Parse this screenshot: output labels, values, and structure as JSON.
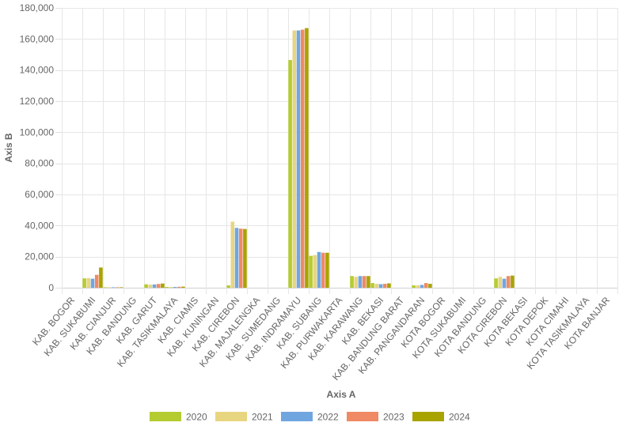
{
  "chart_data": {
    "type": "bar",
    "title": "",
    "xlabel": "Axis A",
    "ylabel": "Axis B",
    "ylim": [
      0,
      180000
    ],
    "yticks": [
      0,
      20000,
      40000,
      60000,
      80000,
      100000,
      120000,
      140000,
      160000,
      180000
    ],
    "grid": true,
    "legend_position": "bottom",
    "categories": [
      "KAB. BOGOR",
      "KAB. SUKABUMI",
      "KAB. CIANJUR",
      "KAB. BANDUNG",
      "KAB. GARUT",
      "KAB. TASIKMALAYA",
      "KAB. CIAMIS",
      "KAB. KUNINGAN",
      "KAB. CIREBON",
      "KAB. MAJALENGKA",
      "KAB. SUMEDANG",
      "KAB. INDRAMAYU",
      "KAB. SUBANG",
      "KAB. PURWAKARTA",
      "KAB. KARAWANG",
      "KAB. BEKASI",
      "KAB. BANDUNG BARAT",
      "KAB. PANGANDARAN",
      "KOTA BOGOR",
      "KOTA SUKABUMI",
      "KOTA BANDUNG",
      "KOTA CIREBON",
      "KOTA BEKASI",
      "KOTA DEPOK",
      "KOTA CIMAHI",
      "KOTA TASIKMALAYA",
      "KOTA BANJAR"
    ],
    "series": [
      {
        "name": "2020",
        "color": "#b5cc30",
        "values": [
          0,
          6000,
          300,
          0,
          2200,
          500,
          0,
          0,
          1500,
          0,
          0,
          146500,
          20500,
          0,
          7500,
          3000,
          0,
          1500,
          0,
          0,
          0,
          6000,
          0,
          0,
          0,
          0,
          0
        ]
      },
      {
        "name": "2021",
        "color": "#e8d580",
        "values": [
          0,
          6200,
          300,
          0,
          2000,
          500,
          0,
          0,
          42500,
          0,
          0,
          165500,
          21000,
          0,
          7000,
          2500,
          0,
          1500,
          0,
          0,
          0,
          7000,
          0,
          0,
          0,
          0,
          0
        ]
      },
      {
        "name": "2022",
        "color": "#70a6e0",
        "values": [
          0,
          5800,
          300,
          0,
          2100,
          500,
          0,
          0,
          38500,
          0,
          0,
          165500,
          23000,
          0,
          7500,
          2300,
          0,
          1800,
          0,
          0,
          0,
          5800,
          0,
          0,
          0,
          0,
          0
        ]
      },
      {
        "name": "2023",
        "color": "#ef8a65",
        "values": [
          0,
          8300,
          300,
          0,
          2400,
          600,
          0,
          0,
          38000,
          0,
          0,
          166000,
          22500,
          0,
          7500,
          2500,
          0,
          3000,
          0,
          0,
          0,
          7500,
          0,
          0,
          0,
          0,
          0
        ]
      },
      {
        "name": "2024",
        "color": "#a9a300",
        "values": [
          0,
          13000,
          300,
          0,
          2700,
          700,
          0,
          0,
          37800,
          0,
          0,
          167000,
          22500,
          0,
          7500,
          2800,
          0,
          2500,
          0,
          0,
          0,
          7800,
          0,
          0,
          0,
          0,
          0
        ]
      }
    ]
  }
}
